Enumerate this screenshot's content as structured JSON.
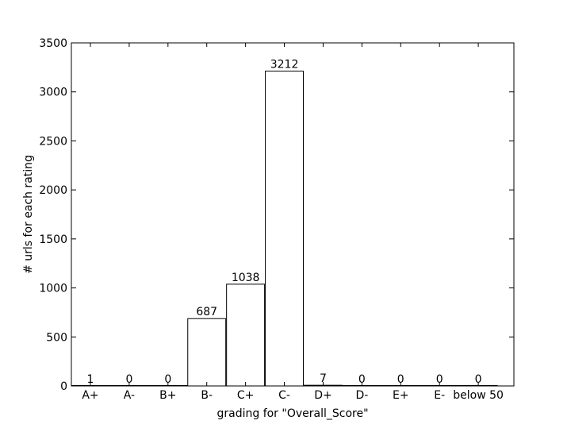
{
  "chart_data": {
    "type": "bar",
    "categories": [
      "A+",
      "A-",
      "B+",
      "B-",
      "C+",
      "C-",
      "D+",
      "D-",
      "E+",
      "E-",
      "below 50"
    ],
    "values": [
      1,
      0,
      0,
      687,
      1038,
      3212,
      7,
      0,
      0,
      0,
      0
    ],
    "data_labels": [
      "1",
      "0",
      "0",
      "687",
      "1038",
      "3212",
      "7",
      "0",
      "0",
      "0",
      "0"
    ],
    "title": "",
    "xlabel": "grading for \"Overall_Score\"",
    "ylabel": "# urls for each rating",
    "ylim": [
      0,
      3500
    ],
    "yticks": [
      0,
      500,
      1000,
      1500,
      2000,
      2500,
      3000,
      3500
    ],
    "ytick_labels": [
      "0",
      "500",
      "1000",
      "1500",
      "2000",
      "2500",
      "3000",
      "3500"
    ],
    "grid": false,
    "legend": "none",
    "bar_fill": "#ffffff",
    "bar_edge": "#000000"
  }
}
